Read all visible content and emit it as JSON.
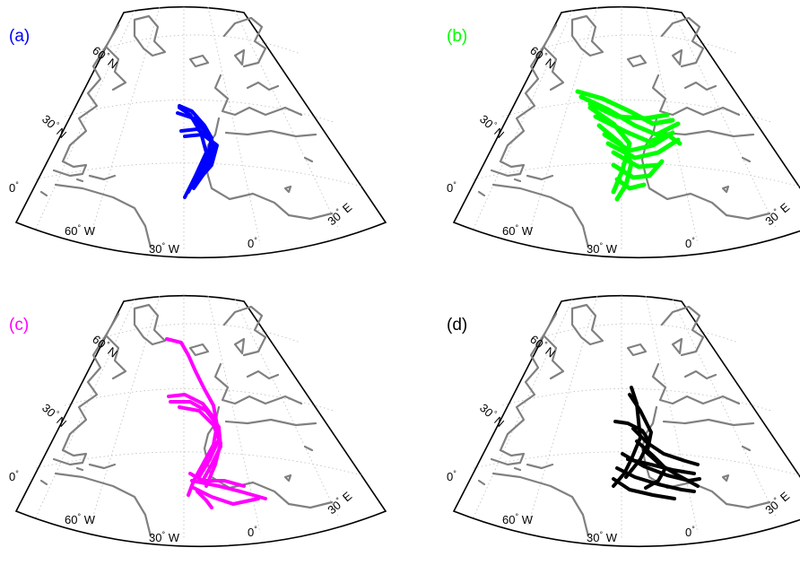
{
  "figure": {
    "panels": [
      {
        "label": "(a)",
        "color": "#0000ff"
      },
      {
        "label": "(b)",
        "color": "#00ff00"
      },
      {
        "label": "(c)",
        "color": "#ff00ff"
      },
      {
        "label": "(d)",
        "color": "#000000"
      }
    ],
    "lat_labels": [
      {
        "num": "60",
        "deg": "°",
        "hemi": "N"
      },
      {
        "num": "30",
        "deg": "°",
        "hemi": "N"
      },
      {
        "num": "0",
        "deg": "°",
        "hemi": ""
      }
    ],
    "lon_labels": [
      {
        "num": "60",
        "deg": "°",
        "hemi": "W"
      },
      {
        "num": "30",
        "deg": "°",
        "hemi": "W"
      },
      {
        "num": "0",
        "deg": "°",
        "hemi": ""
      },
      {
        "num": "30",
        "deg": "°",
        "hemi": "E"
      }
    ],
    "colors": {
      "coast": "#808080",
      "grid": "#bdbdbd",
      "frame": "#000000"
    },
    "projection": "conic",
    "gridlines": "dotted"
  }
}
